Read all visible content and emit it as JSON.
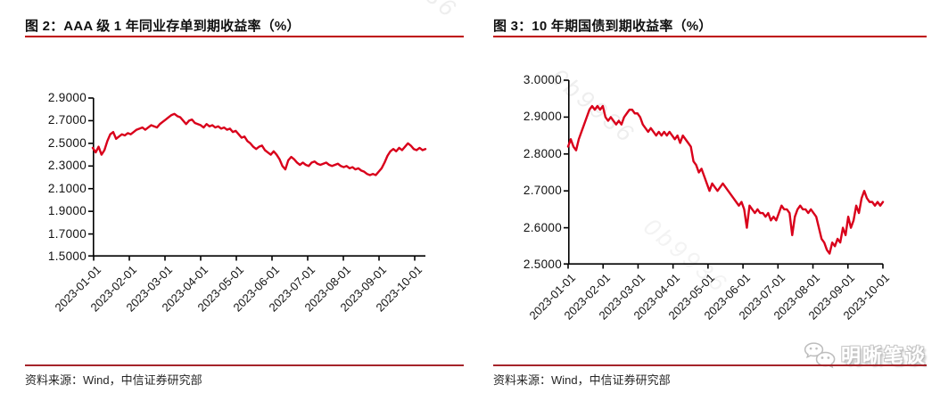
{
  "watermarks": [
    "36",
    "0b9936",
    "0b9936"
  ],
  "figures": [
    {
      "title": "图 2：AAA 级 1 年同业存单到期收益率（%）",
      "source": "资料来源：Wind，中信证券研究部"
    },
    {
      "title": "图 3：10 年期国债到期收益率（%）",
      "source": "资料来源：Wind，中信证券研究部"
    }
  ],
  "logo": {
    "icon": "wechat-icon",
    "text": "明晰笔谈"
  },
  "colors": {
    "series_line": "#D9001B",
    "title_rule": "#BE0000",
    "source_rule": "#A5242A",
    "axis": "#000000",
    "text": "#111111"
  },
  "chart_data": [
    {
      "type": "line",
      "title": "AAA 级 1 年同业存单到期收益率（%）",
      "xlabel": "",
      "ylabel": "",
      "grid": false,
      "legend": "none",
      "ylim": [
        1.5,
        2.9
      ],
      "x_tick_labels": [
        "2023-01-01",
        "2023-02-01",
        "2023-03-01",
        "2023-04-01",
        "2023-05-01",
        "2023-06-01",
        "2023-07-01",
        "2023-08-01",
        "2023-09-01",
        "2023-10-01"
      ],
      "y_tick_labels": [
        "2.9000",
        "2.7000",
        "2.5000",
        "2.3000",
        "2.1000",
        "1.9000",
        "1.7000",
        "1.5000"
      ],
      "series": [
        {
          "name": "AAA级1年同业存单到期收益率",
          "color": "#D9001B",
          "values": [
            2.46,
            2.42,
            2.47,
            2.4,
            2.44,
            2.52,
            2.58,
            2.6,
            2.54,
            2.56,
            2.58,
            2.57,
            2.59,
            2.58,
            2.6,
            2.62,
            2.63,
            2.64,
            2.62,
            2.64,
            2.66,
            2.65,
            2.64,
            2.67,
            2.69,
            2.71,
            2.73,
            2.75,
            2.76,
            2.74,
            2.73,
            2.7,
            2.67,
            2.7,
            2.71,
            2.68,
            2.67,
            2.66,
            2.64,
            2.67,
            2.65,
            2.66,
            2.64,
            2.65,
            2.63,
            2.64,
            2.62,
            2.63,
            2.6,
            2.61,
            2.58,
            2.55,
            2.56,
            2.52,
            2.5,
            2.47,
            2.45,
            2.47,
            2.48,
            2.44,
            2.42,
            2.4,
            2.43,
            2.4,
            2.36,
            2.3,
            2.27,
            2.35,
            2.38,
            2.36,
            2.33,
            2.31,
            2.33,
            2.31,
            2.3,
            2.33,
            2.34,
            2.32,
            2.31,
            2.32,
            2.33,
            2.31,
            2.3,
            2.31,
            2.32,
            2.3,
            2.29,
            2.3,
            2.28,
            2.29,
            2.27,
            2.28,
            2.26,
            2.25,
            2.23,
            2.22,
            2.23,
            2.22,
            2.25,
            2.28,
            2.33,
            2.39,
            2.43,
            2.45,
            2.43,
            2.46,
            2.44,
            2.47,
            2.5,
            2.48,
            2.45,
            2.44,
            2.46,
            2.44,
            2.45
          ]
        }
      ]
    },
    {
      "type": "line",
      "title": "10 年期国债到期收益率（%）",
      "xlabel": "",
      "ylabel": "",
      "grid": false,
      "legend": "none",
      "ylim": [
        2.5,
        3.0
      ],
      "x_tick_labels": [
        "2023-01-01",
        "2023-02-01",
        "2023-03-01",
        "2023-04-01",
        "2023-05-01",
        "2023-06-01",
        "2023-07-01",
        "2023-08-01",
        "2023-09-01",
        "2023-10-01"
      ],
      "y_tick_labels": [
        "3.0000",
        "2.9000",
        "2.8000",
        "2.7000",
        "2.6000",
        "2.5000"
      ],
      "series": [
        {
          "name": "10年期国债到期收益率",
          "color": "#D9001B",
          "values": [
            2.82,
            2.84,
            2.82,
            2.81,
            2.84,
            2.86,
            2.88,
            2.9,
            2.92,
            2.93,
            2.92,
            2.93,
            2.92,
            2.93,
            2.9,
            2.89,
            2.9,
            2.89,
            2.88,
            2.89,
            2.88,
            2.9,
            2.91,
            2.92,
            2.92,
            2.91,
            2.91,
            2.9,
            2.88,
            2.87,
            2.86,
            2.87,
            2.86,
            2.85,
            2.86,
            2.85,
            2.86,
            2.85,
            2.86,
            2.85,
            2.84,
            2.85,
            2.83,
            2.85,
            2.84,
            2.83,
            2.82,
            2.78,
            2.77,
            2.75,
            2.76,
            2.74,
            2.72,
            2.7,
            2.72,
            2.71,
            2.7,
            2.71,
            2.72,
            2.71,
            2.7,
            2.69,
            2.68,
            2.67,
            2.66,
            2.67,
            2.65,
            2.6,
            2.66,
            2.65,
            2.64,
            2.65,
            2.64,
            2.64,
            2.63,
            2.64,
            2.62,
            2.63,
            2.62,
            2.64,
            2.66,
            2.65,
            2.65,
            2.64,
            2.58,
            2.63,
            2.65,
            2.66,
            2.65,
            2.65,
            2.64,
            2.65,
            2.64,
            2.63,
            2.6,
            2.57,
            2.56,
            2.54,
            2.53,
            2.56,
            2.55,
            2.57,
            2.56,
            2.6,
            2.58,
            2.63,
            2.6,
            2.62,
            2.66,
            2.64,
            2.68,
            2.7,
            2.68,
            2.67,
            2.67,
            2.66,
            2.67,
            2.66,
            2.67
          ]
        }
      ]
    }
  ]
}
